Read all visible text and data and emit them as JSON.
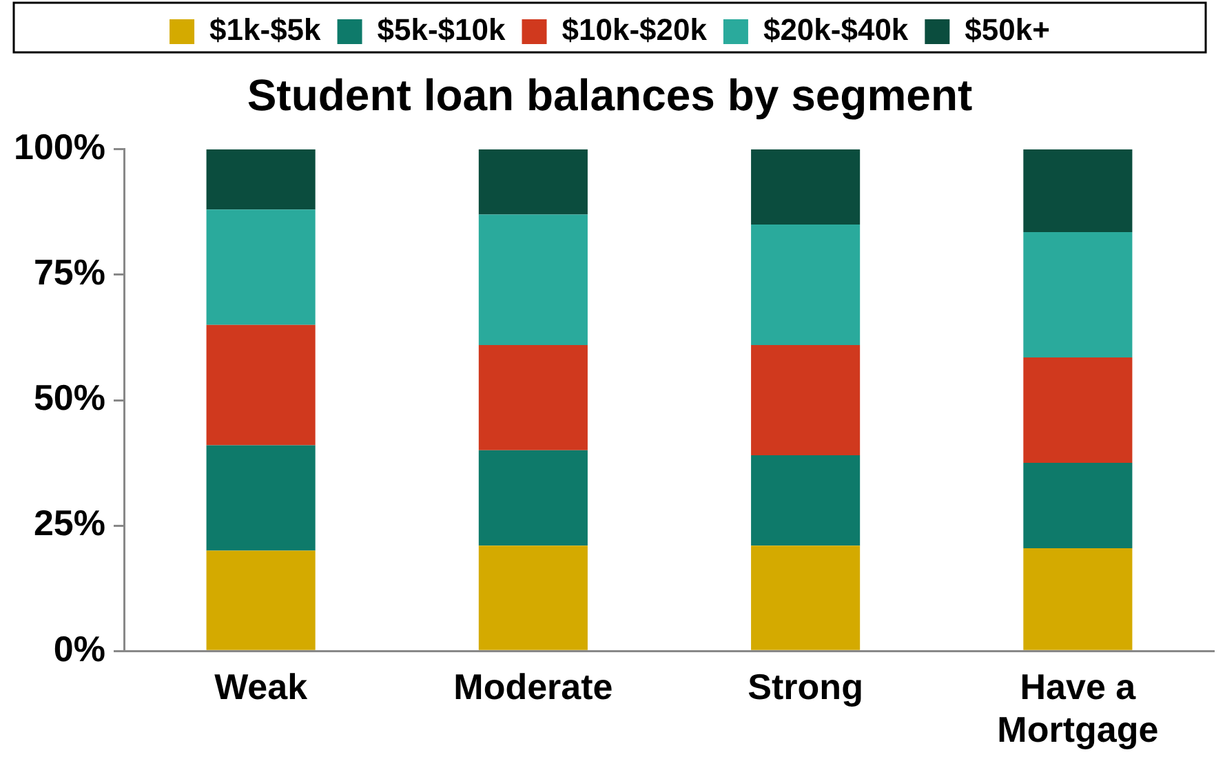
{
  "chart_data": {
    "type": "bar",
    "title": "Student loan balances by segment",
    "categories": [
      "Weak",
      "Moderate",
      "Strong",
      "Have a Mortgage"
    ],
    "stacked": true,
    "legend": "top",
    "grid": false,
    "series": [
      {
        "name": "$1k-$5k",
        "color": "#d4aa00",
        "values": [
          20,
          21,
          21,
          20.5
        ]
      },
      {
        "name": "$5k-$10k",
        "color": "#0e7a6a",
        "values": [
          21,
          19,
          18,
          17
        ]
      },
      {
        "name": "$10k-$20k",
        "color": "#d0391e",
        "values": [
          24,
          21,
          22,
          21
        ]
      },
      {
        "name": "$20k-$40k",
        "color": "#2aaa9c",
        "values": [
          23,
          26,
          24,
          25
        ]
      },
      {
        "name": "$50k+",
        "color": "#0b4d3e",
        "values": [
          12,
          13,
          15,
          16.5
        ]
      }
    ],
    "ylim": [
      0,
      100
    ],
    "yticks": [
      {
        "value": 0,
        "label": "0%"
      },
      {
        "value": 25,
        "label": "25%"
      },
      {
        "value": 50,
        "label": "50%"
      },
      {
        "value": 75,
        "label": "75%"
      },
      {
        "value": 100,
        "label": "100%"
      }
    ]
  }
}
